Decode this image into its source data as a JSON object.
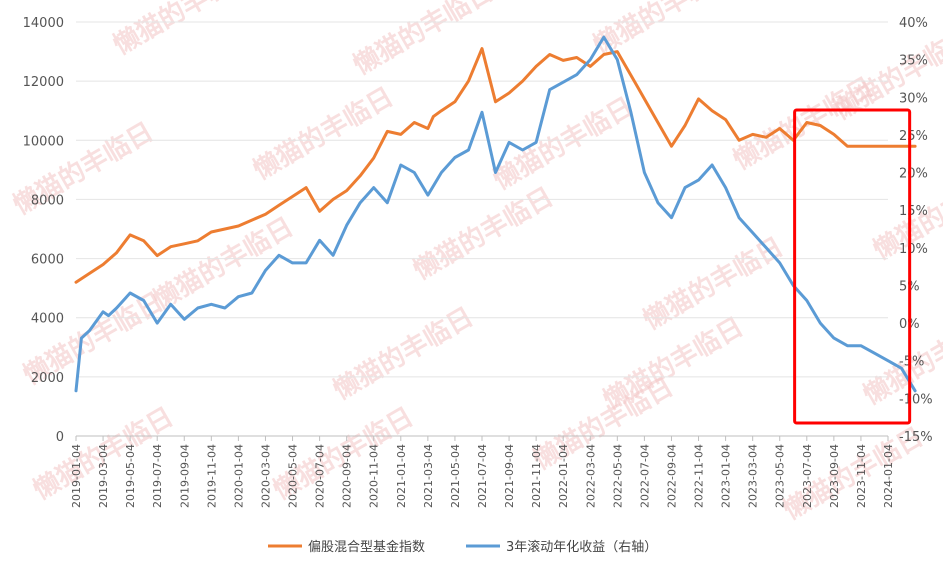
{
  "chart_data": {
    "type": "line",
    "title": "",
    "x_ticks": [
      "2019-01-04",
      "2019-03-04",
      "2019-05-04",
      "2019-07-04",
      "2019-09-04",
      "2019-11-04",
      "2020-01-04",
      "2020-03-04",
      "2020-05-04",
      "2020-07-04",
      "2020-09-04",
      "2020-11-04",
      "2021-01-04",
      "2021-03-04",
      "2021-05-04",
      "2021-07-04",
      "2021-09-04",
      "2021-11-04",
      "2022-01-04",
      "2022-03-04",
      "2022-05-04",
      "2022-07-04",
      "2022-09-04",
      "2022-11-04",
      "2023-01-04",
      "2023-03-04",
      "2023-05-04",
      "2023-07-04",
      "2023-09-04",
      "2023-11-04",
      "2024-01-04"
    ],
    "y_left": {
      "min": 0,
      "max": 14000,
      "step": 2000,
      "tick_labels": [
        "0",
        "2000",
        "4000",
        "6000",
        "8000",
        "10000",
        "12000",
        "14000"
      ]
    },
    "y_right": {
      "min": -15,
      "max": 40,
      "step": 5,
      "tick_labels": [
        "-15%",
        "-10%",
        "-5%",
        "0%",
        "5%",
        "10%",
        "15%",
        "20%",
        "25%",
        "30%",
        "35%",
        "40%"
      ]
    },
    "grid": "horizontal",
    "legend_position": "bottom",
    "colors": {
      "index": "#ED7D31",
      "rolling": "#5B9BD5",
      "highlight": "#FF0000"
    },
    "series": [
      {
        "name": "偏股混合型基金指数",
        "axis": "left",
        "t": [
          0,
          0.5,
          1,
          1.5,
          2,
          2.5,
          3,
          3.5,
          4,
          4.5,
          5,
          5.5,
          6,
          6.5,
          7,
          7.5,
          8,
          8.5,
          9,
          9.5,
          10,
          10.5,
          11,
          11.5,
          12,
          12.5,
          13,
          13.2,
          13.5,
          14,
          14.5,
          15,
          15.5,
          16,
          16.5,
          17,
          17.5,
          18,
          18.5,
          19,
          19.5,
          20,
          20.5,
          21,
          21.5,
          22,
          22.5,
          23,
          23.5,
          24,
          24.5,
          25,
          25.5,
          26,
          26.5,
          27,
          27.5,
          28,
          28.5,
          29,
          29.5,
          30,
          30.5,
          31
        ],
        "values": [
          5200,
          5500,
          5800,
          6200,
          6800,
          6600,
          6100,
          6400,
          6500,
          6600,
          6900,
          7000,
          7100,
          7300,
          7500,
          7800,
          8100,
          8400,
          7600,
          8000,
          8300,
          8800,
          9400,
          10300,
          10200,
          10600,
          10400,
          10800,
          11000,
          11300,
          12000,
          13100,
          11300,
          11600,
          12000,
          12500,
          12900,
          12700,
          12800,
          12500,
          12900,
          13000,
          12200,
          11400,
          10600,
          9800,
          10500,
          11400,
          11000,
          10700,
          10000,
          10200,
          10100,
          10400,
          10000,
          10600,
          10500,
          10200,
          9800,
          9800,
          9800,
          9800,
          9800,
          9800
        ]
      },
      {
        "name": "3年滚动年化收益（右轴）",
        "axis": "right",
        "t": [
          0,
          0.2,
          0.5,
          0.8,
          1,
          1.2,
          1.5,
          2,
          2.5,
          3,
          3.5,
          4,
          4.5,
          5,
          5.5,
          6,
          6.5,
          7,
          7.5,
          8,
          8.5,
          9,
          9.5,
          10,
          10.5,
          11,
          11.5,
          12,
          12.5,
          13,
          13.5,
          14,
          14.5,
          15,
          15.5,
          16,
          16.5,
          17,
          17.5,
          18,
          18.5,
          19,
          19.5,
          20,
          20.5,
          21,
          21.5,
          22,
          22.5,
          23,
          23.5,
          24,
          24.5,
          25,
          25.5,
          26,
          26.5,
          27,
          27.5,
          28,
          28.5,
          29,
          29.5,
          30,
          30.5,
          31
        ],
        "values": [
          -9,
          -2,
          -1,
          0.5,
          1.5,
          1,
          2,
          4,
          3,
          0,
          2.5,
          0.5,
          2,
          2.5,
          2,
          3.5,
          4,
          7,
          9,
          8,
          8,
          11,
          9,
          13,
          16,
          18,
          16,
          21,
          20,
          17,
          20,
          22,
          23,
          28,
          20,
          24,
          23,
          24,
          31,
          32,
          33,
          35,
          38,
          35,
          28,
          20,
          16,
          14,
          18,
          19,
          21,
          18,
          14,
          12,
          10,
          8,
          5,
          3,
          0,
          -2,
          -3,
          -3,
          -4,
          -5,
          -6,
          -9
        ]
      }
    ],
    "legend": [
      "偏股混合型基金指数",
      "3年滚动年化收益（右轴）"
    ],
    "annotations": [
      {
        "type": "rectangle",
        "color": "#FF0000",
        "x_from": "2023-04-20",
        "x_to": "2024-02-28"
      }
    ],
    "watermark_text": "懒猫的丰临日"
  }
}
